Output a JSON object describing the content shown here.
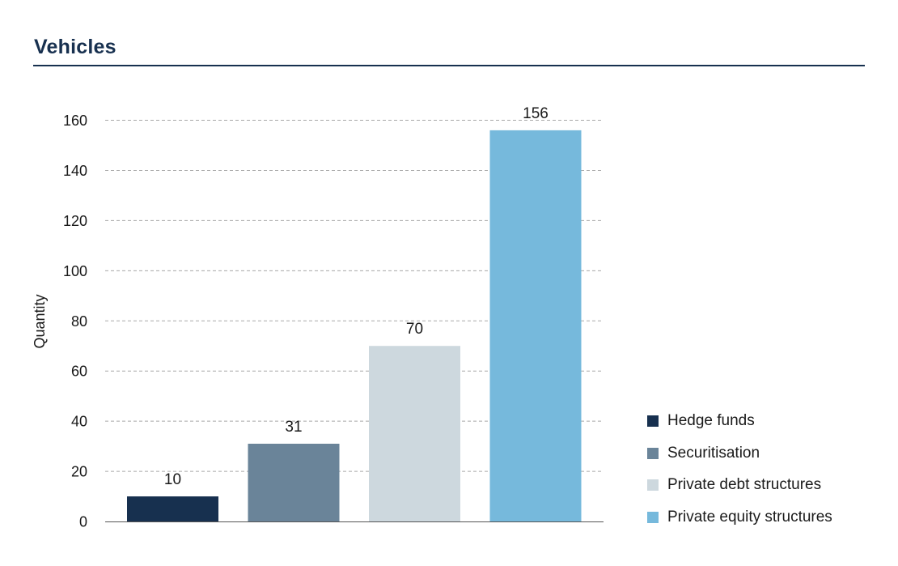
{
  "header": {
    "title": "Vehicles"
  },
  "chart_data": {
    "type": "bar",
    "title": "Vehicles",
    "xlabel": "",
    "ylabel": "Quantity",
    "ylim": [
      0,
      160
    ],
    "yticks": [
      0,
      20,
      40,
      60,
      80,
      100,
      120,
      140,
      160
    ],
    "grid": true,
    "legend_position": "right",
    "categories": [
      "Hedge funds",
      "Securitisation",
      "Private debt structures",
      "Private equity structures"
    ],
    "values": [
      10,
      31,
      70,
      156
    ],
    "colors": [
      "#17304f",
      "#6a8499",
      "#cdd8de",
      "#76b9dc"
    ]
  }
}
